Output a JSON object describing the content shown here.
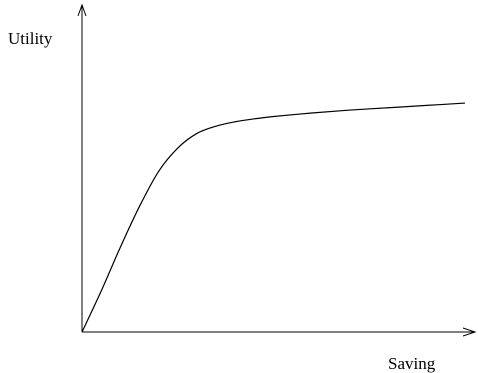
{
  "chart_data": {
    "type": "line",
    "title": "",
    "xlabel": "Saving",
    "ylabel": "Utility",
    "xlim": [
      0,
      10
    ],
    "ylim": [
      0,
      10
    ],
    "grid": false,
    "legend": "none",
    "show_ticks": false,
    "series": [
      {
        "color": "#000000",
        "x": [
          0,
          0.5,
          1,
          1.5,
          2,
          2.5,
          3,
          3.5,
          4,
          4.5,
          5,
          6,
          7,
          8,
          9,
          10
        ],
        "y": [
          0,
          1.4,
          2.9,
          4.3,
          5.5,
          6.3,
          6.8,
          7.05,
          7.2,
          7.3,
          7.38,
          7.5,
          7.6,
          7.68,
          7.76,
          7.84
        ]
      }
    ]
  }
}
